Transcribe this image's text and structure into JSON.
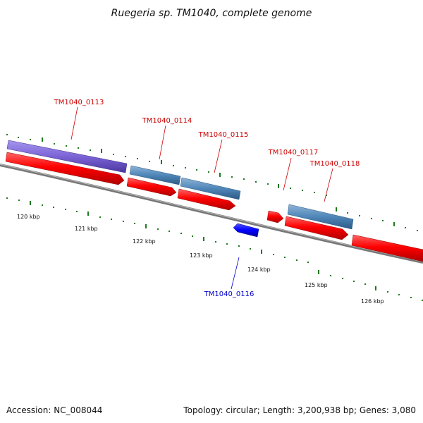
{
  "title": "Ruegeria sp. TM1040, complete genome",
  "footer": {
    "accession": "Accession: NC_008044",
    "summary": "Topology: circular; Length: 3,200,938 bp; Genes: 3,080"
  },
  "ticks": [
    "120 kbp",
    "121 kbp",
    "122 kbp",
    "123 kbp",
    "124 kbp",
    "125 kbp",
    "126 kbp"
  ],
  "gene_labels": {
    "g113": "TM1040_0113",
    "g114": "TM1040_0114",
    "g115": "TM1040_0115",
    "g116": "TM1040_0116",
    "g117": "TM1040_0117",
    "g118": "TM1040_0118"
  },
  "colors": {
    "forward_label": "#cc0000",
    "reverse_label": "#0000cc",
    "cds": "#ff0000",
    "gene_bar": "#4f86b8",
    "purple_bar": "#7b63d6",
    "reverse_gene": "#0000ff",
    "backbone": "#777777",
    "tick": "#1f7a1f"
  }
}
